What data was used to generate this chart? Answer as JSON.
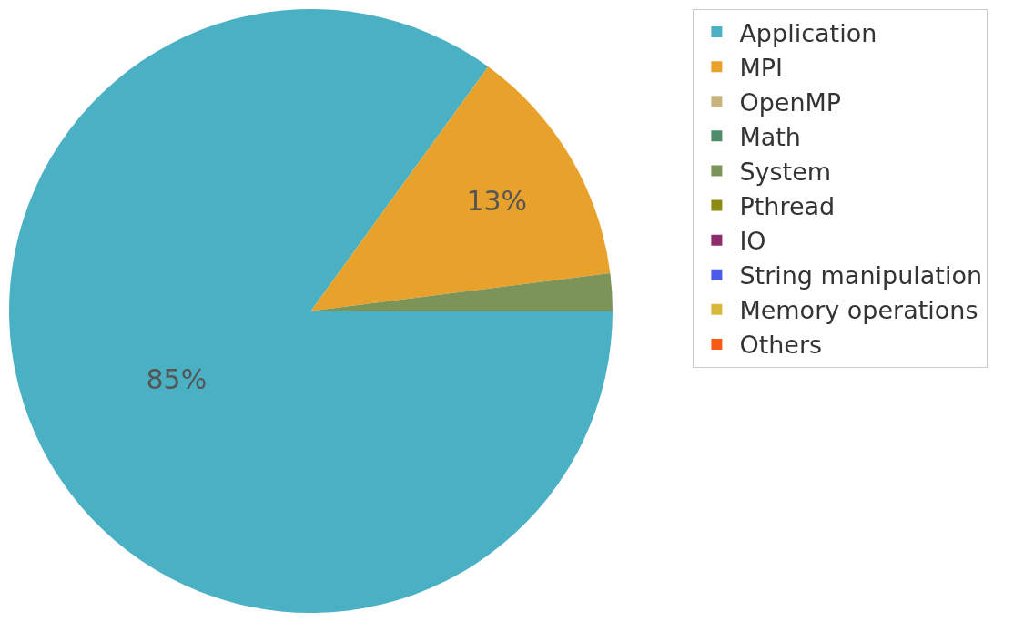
{
  "chart_data": {
    "type": "pie",
    "categories": [
      "Application",
      "MPI",
      "OpenMP",
      "Math",
      "System",
      "Pthread",
      "IO",
      "String manipulation",
      "Memory operations",
      "Others"
    ],
    "values": [
      85,
      13,
      0,
      0,
      2,
      0,
      0,
      0,
      0,
      0
    ],
    "colors": [
      "#4ab0c4",
      "#e8a22b",
      "#c8b47c",
      "#4e8c6c",
      "#7c9458",
      "#8c8a10",
      "#8c2c6c",
      "#4c5ce8",
      "#d8b83c",
      "#f85c14"
    ],
    "value_labels": [
      "85%",
      "13%",
      null,
      null,
      null,
      null,
      null,
      null,
      null,
      null
    ],
    "legend": "right"
  }
}
